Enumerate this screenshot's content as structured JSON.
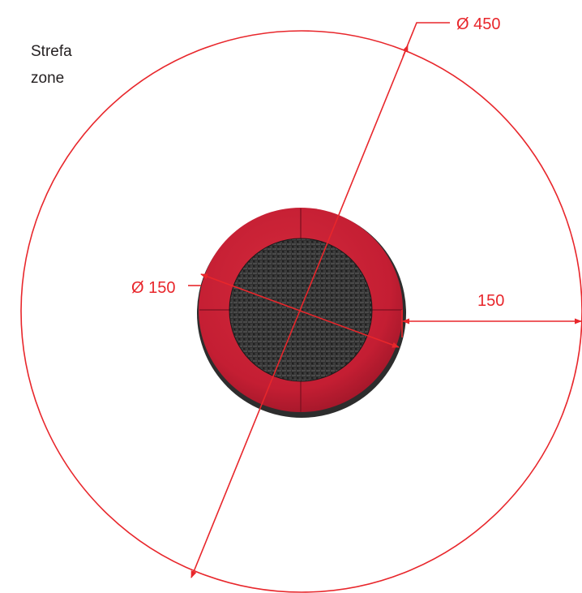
{
  "zone_label": {
    "line1": "Strefa",
    "line2": "zone"
  },
  "dimensions": {
    "outer_diameter": "Ø 450",
    "inner_diameter": "Ø 150",
    "clearance": "150"
  },
  "colors": {
    "dimension_line": "#e8262b",
    "trampoline_pad": "#c41e33",
    "trampoline_pad_dark": "#8e1424",
    "jumping_mat": "#2b2b2b",
    "frame_edge": "#3a3a3a",
    "text": "#231f20"
  }
}
